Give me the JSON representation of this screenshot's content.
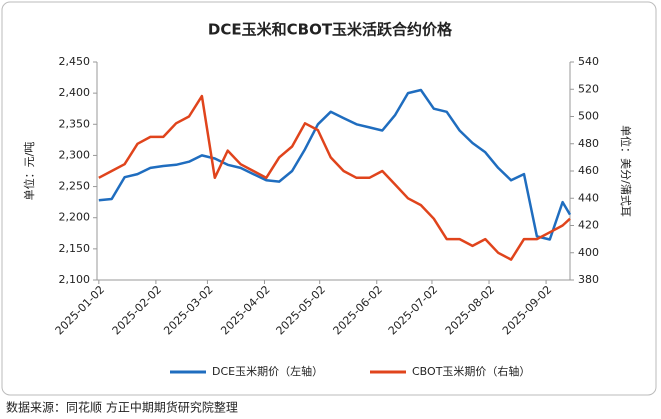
{
  "chart_data": {
    "type": "line",
    "title": "DCE玉米和CBOT玉米活跃合约价格",
    "y_label": "单位：元/吨",
    "y2_label": "单位：美分/蒲式耳",
    "source": "数据来源：同花顺 方正中期期货研究院整理",
    "x": [
      "2025-01-02",
      "2025-01-09",
      "2025-01-16",
      "2025-01-23",
      "2025-01-30",
      "2025-02-06",
      "2025-02-13",
      "2025-02-20",
      "2025-02-27",
      "2025-03-06",
      "2025-03-13",
      "2025-03-20",
      "2025-03-27",
      "2025-04-03",
      "2025-04-10",
      "2025-04-17",
      "2025-04-24",
      "2025-05-01",
      "2025-05-08",
      "2025-05-15",
      "2025-05-22",
      "2025-05-29",
      "2025-06-05",
      "2025-06-12",
      "2025-06-19",
      "2025-06-26",
      "2025-07-03",
      "2025-07-10",
      "2025-07-17",
      "2025-07-24",
      "2025-07-31",
      "2025-08-07",
      "2025-08-14",
      "2025-08-21",
      "2025-08-28",
      "2025-09-04",
      "2025-09-11",
      "2025-09-15"
    ],
    "xlim": [
      "2025-01-01",
      "2025-09-15"
    ],
    "xticks": [
      "2025-01-02",
      "2025-02-02",
      "2025-03-02",
      "2025-04-02",
      "2025-05-02",
      "2025-06-02",
      "2025-07-02",
      "2025-08-02",
      "2025-09-02"
    ],
    "ylim": [
      2100,
      2450
    ],
    "yticks": [
      {
        "value": 2100,
        "label": "2,100"
      },
      {
        "value": 2150,
        "label": "2,150"
      },
      {
        "value": 2200,
        "label": "2,200"
      },
      {
        "value": 2250,
        "label": "2,250"
      },
      {
        "value": 2300,
        "label": "2,300"
      },
      {
        "value": 2350,
        "label": "2,350"
      },
      {
        "value": 2400,
        "label": "2,400"
      },
      {
        "value": 2450,
        "label": "2,450"
      }
    ],
    "y2lim": [
      380,
      540
    ],
    "y2ticks": [
      380,
      400,
      420,
      440,
      460,
      480,
      500,
      520,
      540
    ],
    "series": [
      {
        "name": "DCE玉米期价（左轴）",
        "color": "#1f6dbf",
        "values": [
          2228,
          2230,
          2265,
          2270,
          2280,
          2283,
          2285,
          2290,
          2300,
          2295,
          2285,
          2280,
          2270,
          2260,
          2258,
          2275,
          2310,
          2350,
          2370,
          2360,
          2350,
          2345,
          2340,
          2365,
          2400,
          2405,
          2375,
          2370,
          2340,
          2320,
          2305,
          2280,
          2260,
          2270,
          2170,
          2165,
          2225,
          2205
        ]
      },
      {
        "name": "CBOT玉米期价（右轴）",
        "color": "#e0441c",
        "axis": "y2",
        "values": [
          455,
          460,
          465,
          480,
          485,
          485,
          495,
          500,
          515,
          455,
          475,
          465,
          460,
          455,
          470,
          478,
          495,
          490,
          470,
          460,
          455,
          455,
          460,
          450,
          440,
          435,
          425,
          410,
          410,
          405,
          410,
          400,
          395,
          410,
          410,
          415,
          420,
          425
        ]
      }
    ]
  }
}
